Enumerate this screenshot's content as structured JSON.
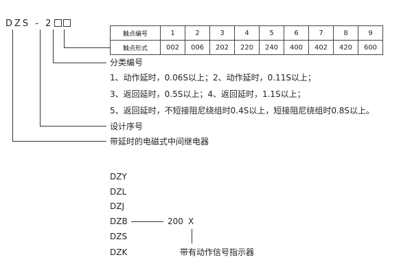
{
  "model_code": {
    "prefix": "DZS - 2"
  },
  "contact_table": {
    "row_labels": [
      "触点编号",
      "触点形式"
    ],
    "numbers": [
      "1",
      "2",
      "3",
      "4",
      "5",
      "6",
      "7",
      "8",
      "9"
    ],
    "forms": [
      "002",
      "006",
      "202",
      "220",
      "240",
      "400",
      "402",
      "420",
      "600"
    ]
  },
  "classification": {
    "title": "分类编号",
    "lines": [
      "1、动作延时，0.06S以上；2、动作延时，0.11S以上；",
      "3、返回延时，0.5S以上；4、返回延时，1.1S以上；",
      "5、返回延时，不短接阻尼绕组时0.4S以上，短接阻尼绕组时0.8S以上。"
    ]
  },
  "design_serial": "设计序号",
  "relay_desc": "带延时的电磁式中间继电器",
  "series": [
    "DZY",
    "DZL",
    "DZJ",
    "DZB",
    "DZS",
    "DZK"
  ],
  "dzb_suffix": "200",
  "dzb_x": "X",
  "indicator_label": "带有动作信号指示器"
}
